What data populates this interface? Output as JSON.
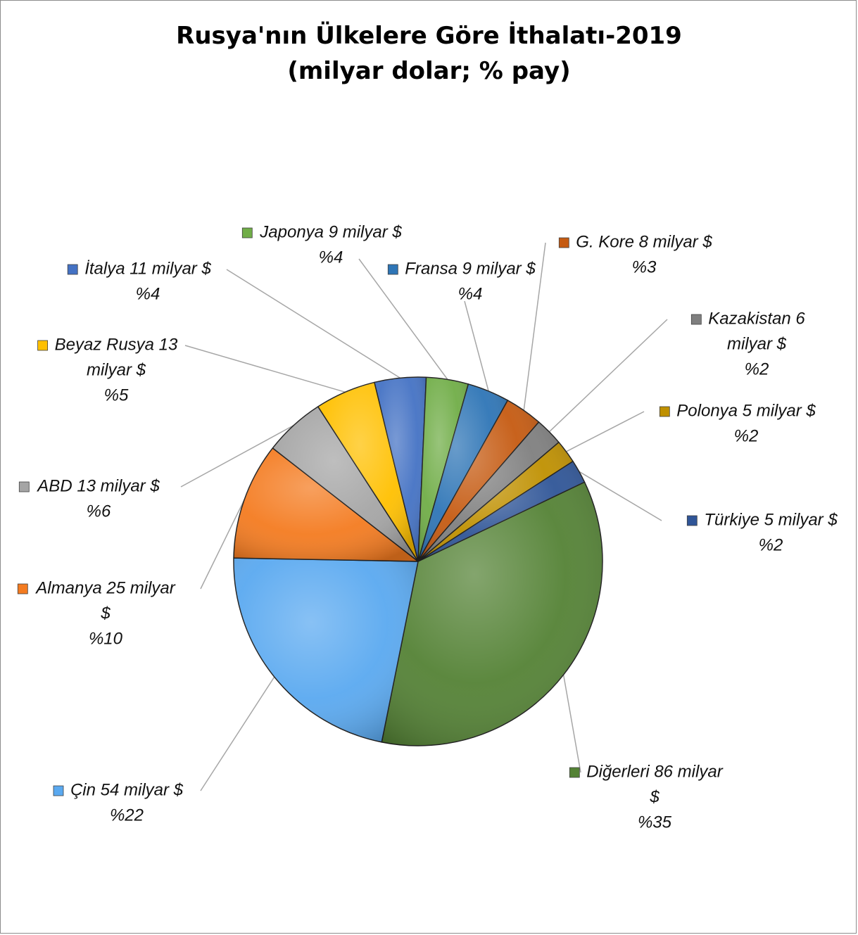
{
  "chart_data": {
    "type": "pie",
    "title": "Rusya'nın Ülkelere Göre İthalatı-2019",
    "subtitle": "(milyar dolar; % pay)",
    "slices": [
      {
        "label_lines": [
          "Diğerleri 86 milyar",
          "$",
          "%35"
        ],
        "value": 86,
        "percent": 35,
        "color": "#548235"
      },
      {
        "label_lines": [
          "Çin 54 milyar $",
          "%22"
        ],
        "value": 54,
        "percent": 22,
        "color": "#5aa9f0"
      },
      {
        "label_lines": [
          "Almanya 25 milyar",
          "$",
          "%10"
        ],
        "value": 25,
        "percent": 10,
        "color": "#f47b20"
      },
      {
        "label_lines": [
          "ABD 13 milyar $",
          "%6"
        ],
        "value": 13,
        "percent": 6,
        "color": "#a5a5a5"
      },
      {
        "label_lines": [
          "Beyaz Rusya 13",
          "milyar $",
          "%5"
        ],
        "value": 13,
        "percent": 5,
        "color": "#ffc000"
      },
      {
        "label_lines": [
          "İtalya 11 milyar $",
          "%4"
        ],
        "value": 11,
        "percent": 4,
        "color": "#4472c4"
      },
      {
        "label_lines": [
          "Japonya 9 milyar $",
          "%4"
        ],
        "value": 9,
        "percent": 4,
        "color": "#70ad47"
      },
      {
        "label_lines": [
          "Fransa 9 milyar $",
          "%4"
        ],
        "value": 9,
        "percent": 4,
        "color": "#2e75b6"
      },
      {
        "label_lines": [
          "G. Kore 8 milyar $",
          "%3"
        ],
        "value": 8,
        "percent": 3,
        "color": "#c55a11"
      },
      {
        "label_lines": [
          "Kazakistan 6",
          "milyar $",
          "%2"
        ],
        "value": 6,
        "percent": 2,
        "color": "#7f7f7f"
      },
      {
        "label_lines": [
          "Polonya 5 milyar $",
          "%2"
        ],
        "value": 5,
        "percent": 2,
        "color": "#bf9000"
      },
      {
        "label_lines": [
          "Türkiye 5 milyar $",
          "%2"
        ],
        "value": 5,
        "percent": 2,
        "color": "#2f5597"
      }
    ]
  }
}
